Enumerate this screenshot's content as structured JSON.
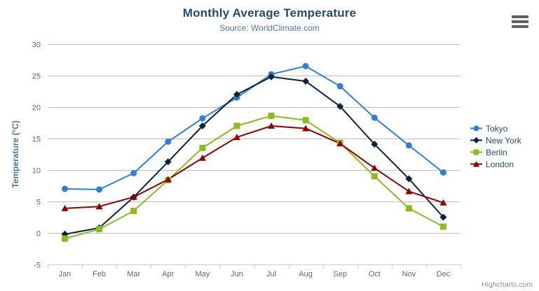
{
  "header": {
    "title": "Monthly Average Temperature",
    "subtitle": "Source: WorldClimate.com"
  },
  "credits": "Highcharts.com",
  "menu_icon": "hamburger-menu",
  "colors": {
    "title": "#274b6d",
    "subtitle": "#4d759e",
    "axis_title": "#4d759e",
    "tick_label": "#666666",
    "grid_line": "#c0c0c0",
    "axis_line": "#c0d0e0",
    "legend_text": "#274b6d",
    "credits_text": "#909090"
  },
  "chart_data": {
    "type": "line",
    "title": "Monthly Average Temperature",
    "subtitle": "Source: WorldClimate.com",
    "xlabel": "",
    "ylabel": "Temperature (°C)",
    "ylim": [
      -5,
      30
    ],
    "ytick_step": 5,
    "grid": true,
    "legend_position": "right",
    "categories": [
      "Jan",
      "Feb",
      "Mar",
      "Apr",
      "May",
      "Jun",
      "Jul",
      "Aug",
      "Sep",
      "Oct",
      "Nov",
      "Dec"
    ],
    "series": [
      {
        "name": "Tokyo",
        "color": "#2f7ed8",
        "marker": "circle",
        "values": [
          7.0,
          6.9,
          9.5,
          14.5,
          18.2,
          21.5,
          25.2,
          26.5,
          23.3,
          18.3,
          13.9,
          9.6
        ]
      },
      {
        "name": "New York",
        "color": "#0d233a",
        "marker": "diamond",
        "values": [
          -0.2,
          0.8,
          5.7,
          11.3,
          17.0,
          22.0,
          24.8,
          24.1,
          20.1,
          14.1,
          8.6,
          2.5
        ]
      },
      {
        "name": "Berlin",
        "color": "#8bbc21",
        "marker": "square",
        "values": [
          -0.9,
          0.6,
          3.5,
          8.4,
          13.5,
          17.0,
          18.6,
          17.9,
          14.3,
          9.0,
          3.9,
          1.0
        ]
      },
      {
        "name": "London",
        "color": "#910000",
        "marker": "triangle",
        "values": [
          3.9,
          4.2,
          5.7,
          8.5,
          11.9,
          15.2,
          17.0,
          16.6,
          14.2,
          10.3,
          6.6,
          4.8
        ]
      }
    ]
  }
}
